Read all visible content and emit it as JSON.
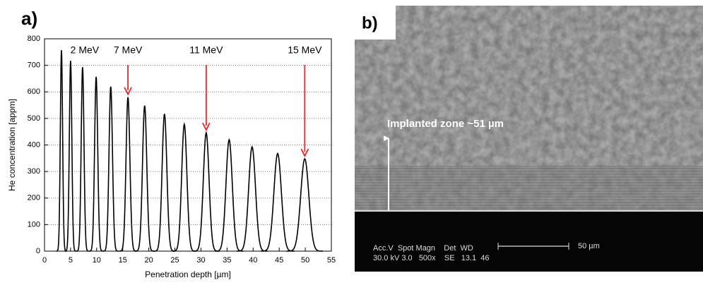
{
  "chart_data": {
    "type": "peak",
    "panel_label": "a)",
    "x_label": "Penetration depth [µm]",
    "y_label": "He concentration [appm]",
    "x": [
      3.25,
      5.0,
      7.3,
      9.9,
      12.7,
      16.0,
      19.2,
      23.0,
      26.8,
      31.0,
      35.4,
      39.8,
      44.7,
      49.9
    ],
    "values": [
      757,
      717,
      693,
      657,
      620,
      580,
      548,
      517,
      478,
      446,
      420,
      393,
      368,
      348
    ],
    "color": "#000000",
    "annotations": [
      "2 MeV",
      "7 MeV",
      "11 MeV",
      "15 MeV"
    ],
    "arrow_color": "#e8262a",
    "xlim": [
      0,
      55
    ],
    "xticks": [
      0,
      5,
      10,
      15,
      20,
      25,
      30,
      35,
      40,
      45,
      50,
      55
    ],
    "ylim": [
      0,
      800
    ],
    "yticks": [
      0,
      100,
      200,
      300,
      400,
      500,
      600,
      700,
      800
    ],
    "grid": true
  },
  "image_panel": {
    "panel_label": "b)",
    "zone_label": "Implanted zone ~51  µm",
    "info_header": "Acc.V  Spot Magn    Det  WD",
    "info_values": "30.0 kV 3.0   500x    SE   13.1  46",
    "scale_label": "50 µm"
  }
}
